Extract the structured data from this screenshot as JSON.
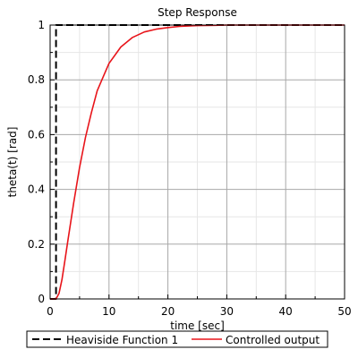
{
  "chart_data": {
    "type": "line",
    "title": "Step Response",
    "xlabel": "time [sec]",
    "ylabel": "theta(t) [rad]",
    "xlim": [
      0,
      50
    ],
    "ylim": [
      0,
      1
    ],
    "x_ticks": [
      "0",
      "10",
      "20",
      "30",
      "40",
      "50"
    ],
    "y_ticks": [
      "0",
      "0.2",
      "0.4",
      "0.6",
      "0.8",
      "1"
    ],
    "grid": true,
    "legend_position": "bottom",
    "series": [
      {
        "name": "Heaviside Function 1",
        "color": "#000000",
        "style": "dashed",
        "x": [
          0,
          1,
          1,
          50
        ],
        "y": [
          0,
          0,
          1,
          1
        ]
      },
      {
        "name": "Controlled output",
        "color": "#e8141a",
        "style": "solid",
        "x": [
          0,
          1,
          1.5,
          2,
          2.5,
          3,
          4,
          5,
          6,
          7,
          8,
          9,
          10,
          12,
          14,
          16,
          18,
          20,
          22,
          25,
          28,
          30,
          35,
          40,
          45,
          50
        ],
        "y": [
          0,
          0,
          0.02,
          0.07,
          0.14,
          0.21,
          0.35,
          0.48,
          0.59,
          0.68,
          0.76,
          0.81,
          0.86,
          0.92,
          0.955,
          0.975,
          0.985,
          0.991,
          0.995,
          0.998,
          0.999,
          1.0,
          1.0,
          1.0,
          1.0,
          1.0
        ]
      }
    ]
  }
}
